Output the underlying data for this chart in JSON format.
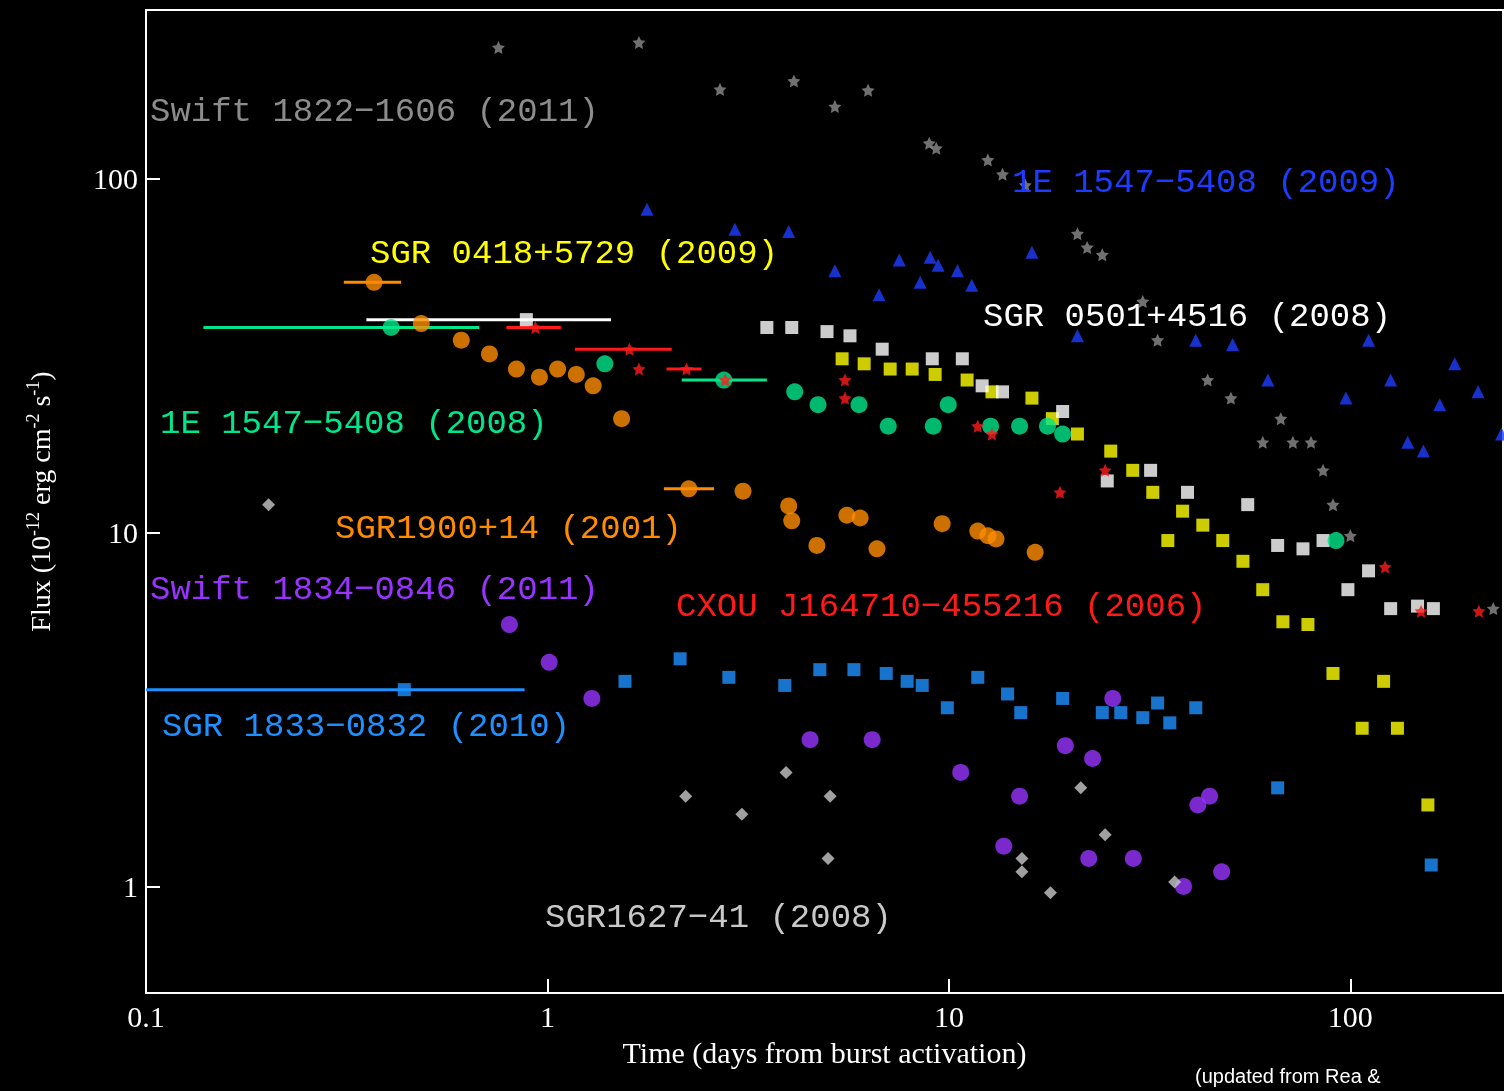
{
  "chart_data": {
    "type": "scatter",
    "xlabel": "Time (days from burst activation)",
    "ylabel": "Flux (10$^{-12}$ erg cm$^{-2}$ s$^{-1}$)",
    "log": "xy",
    "grid": false,
    "xlim": [
      0.1,
      240
    ],
    "xticks": [
      0.1,
      1,
      10,
      100
    ],
    "ylim": [
      0.5,
      300
    ],
    "yticks": [
      1,
      10,
      100
    ],
    "annotations": [
      "(updated from Rea &"
    ],
    "series": [
      {
        "name": "Swift 1822−1606 (2011)",
        "color": "#8c8c8c",
        "marker": "star",
        "x": [
          0.755,
          1.69,
          2.69,
          4.11,
          5.2,
          6.29,
          8.93,
          9.3,
          12.5,
          13.6,
          15.5,
          20.9,
          22.1,
          24.1,
          30.4,
          33.1,
          44.1,
          50.4,
          60.5,
          67.1,
          71.9,
          79.8,
          85.5,
          90.5,
          100,
          227
        ],
        "values": [
          235,
          243,
          179,
          189,
          160,
          178,
          126,
          122,
          113,
          103,
          96,
          70,
          64,
          61,
          45,
          35,
          27,
          24,
          18,
          21,
          18,
          18,
          15,
          12,
          9.8,
          6.1
        ]
      },
      {
        "name": "1E 1547−5408 (2009)",
        "color": "#1e3cff",
        "marker": "triangle",
        "x": [
          1.77,
          2.93,
          3.99,
          5.2,
          6.7,
          7.52,
          8.48,
          8.98,
          9.4,
          10.5,
          11.4,
          16.1,
          20.9,
          41.2,
          50.9,
          62.3,
          97.5,
          111,
          126,
          139,
          152,
          167,
          182,
          208,
          238
        ],
        "values": [
          82,
          72,
          71,
          55,
          47,
          59,
          51,
          60,
          57,
          55,
          50,
          62,
          36,
          35,
          34,
          27,
          24,
          35,
          27,
          18,
          17,
          23,
          30,
          25,
          19
        ]
      },
      {
        "name": "SGR 0418+5729 (2009)",
        "color": "#ffff00",
        "marker": "square",
        "x": [
          5.42,
          6.15,
          7.14,
          8.1,
          9.24,
          11.1,
          12.8,
          16.1,
          18.1,
          20.9,
          25.3,
          28.7,
          32.2,
          35.1,
          38.2,
          42.9,
          48.1,
          54,
          60.5,
          67.9,
          78.4,
          90.5,
          107,
          121,
          131,
          156
        ],
        "values": [
          31,
          30,
          29,
          29,
          28,
          27,
          25,
          24,
          21,
          19,
          17,
          15,
          13,
          9.5,
          11.5,
          10.5,
          9.5,
          8.3,
          6.9,
          5.6,
          5.5,
          4,
          2.8,
          3.8,
          2.8,
          1.7
        ]
      },
      {
        "name": "SGR 0501+4516 (2008)",
        "color": "#ffffff",
        "marker": "square",
        "x": [
          0.886,
          3.52,
          4.06,
          4.97,
          5.67,
          6.82,
          9.09,
          10.8,
          12.1,
          13.6,
          19.2,
          24.8,
          31.8,
          39.3,
          55.5,
          65.9,
          76.2,
          85.5,
          98.6,
          111,
          126,
          147,
          161
        ],
        "values": [
          40,
          38,
          38,
          37,
          36,
          33,
          31,
          31,
          26,
          25,
          22,
          14,
          15,
          13,
          12,
          9.2,
          9,
          9.5,
          6.9,
          7.8,
          6.1,
          6.2,
          6.1
        ],
        "xerrors": [
          [
            0.354,
            1.44
          ],
          null,
          null,
          null,
          null,
          null,
          null,
          null,
          null,
          null,
          null,
          null,
          null,
          null,
          null,
          null,
          null,
          null,
          null,
          null,
          null,
          null,
          null
        ]
      },
      {
        "name": "1E 1547−5408 (2008)",
        "color": "#00e68a",
        "marker": "circle",
        "x": [
          0.408,
          1.39,
          2.75,
          4.13,
          4.72,
          5.97,
          7.06,
          9.14,
          9.96,
          12.7,
          15,
          17.6,
          19.2,
          92.1
        ],
        "values": [
          38,
          30,
          27,
          25,
          23,
          23,
          20,
          20,
          23,
          20,
          20,
          20,
          19,
          9.5
        ],
        "xerrors": [
          [
            0.139,
            0.676
          ],
          null,
          [
            2.16,
            3.52
          ],
          null,
          null,
          null,
          null,
          null,
          null,
          null,
          null,
          null,
          null,
          null
        ]
      },
      {
        "name": "SGR1900+14 (2001)",
        "color": "#ff8c00",
        "marker": "circle",
        "x": [
          0.37,
          0.485,
          0.61,
          0.717,
          0.837,
          0.955,
          1.06,
          1.18,
          1.3,
          1.53,
          2.25,
          3.07,
          3.99,
          4.06,
          4.69,
          5.57,
          6.01,
          6.62,
          9.62,
          11.8,
          12.5,
          13.1,
          16.4
        ],
        "values": [
          51,
          39,
          35,
          32,
          29,
          27.5,
          29,
          28,
          26,
          21,
          13.3,
          13.1,
          11.9,
          10.8,
          9.2,
          11.2,
          11,
          9,
          10.6,
          10.1,
          9.8,
          9.6,
          8.8
        ],
        "xerrors": [
          [
            0.311,
            0.432
          ],
          null,
          null,
          null,
          null,
          null,
          null,
          null,
          null,
          null,
          [
            1.95,
            2.6
          ],
          null,
          null,
          null,
          null,
          null,
          null,
          null,
          null,
          null,
          null,
          null,
          null
        ]
      },
      {
        "name": "Swift 1834−0846 (2011)",
        "color": "#9933ff",
        "marker": "circle",
        "x": [
          0.804,
          1.01,
          1.29,
          4.51,
          6.44,
          10.7,
          13.7,
          15,
          19.5,
          22.3,
          22.8,
          25.6,
          28.8,
          38.4,
          41.7,
          44.6,
          47.8
        ],
        "values": [
          5.5,
          4.3,
          3.4,
          2.6,
          2.6,
          2.1,
          1.3,
          1.8,
          2.5,
          1.2,
          2.3,
          3.4,
          1.2,
          1,
          1.7,
          1.8,
          1.1
        ]
      },
      {
        "name": "CXOU J164710−455216 (2006)",
        "color": "#ff1a1a",
        "marker": "star",
        "x": [
          0.933,
          1.6,
          1.69,
          2.22,
          2.77,
          5.51,
          5.51,
          11.8,
          12.8,
          18.9,
          24.5,
          122,
          150,
          209
        ],
        "values": [
          38,
          33,
          29,
          29,
          27,
          27,
          24,
          20,
          19,
          13,
          15,
          8,
          6,
          6
        ],
        "xerrors": [
          [
            0.79,
            1.08
          ],
          [
            1.17,
            2.04
          ],
          null,
          [
            1.98,
            2.42
          ],
          null,
          null,
          null,
          null,
          null,
          null,
          null,
          null,
          null,
          null
        ]
      },
      {
        "name": "SGR 1833−0832 (2010)",
        "color": "#1e90ff",
        "marker": "square",
        "x": [
          0.44,
          1.56,
          2.14,
          2.83,
          3.9,
          4.77,
          5.8,
          6.98,
          7.87,
          8.58,
          9.91,
          11.8,
          14,
          15.1,
          19.2,
          24.1,
          26.8,
          30.4,
          33.1,
          35.5,
          41.2,
          65.9,
          159
        ],
        "values": [
          3.6,
          3.8,
          4.4,
          3.9,
          3.7,
          4.1,
          4.1,
          4,
          3.8,
          3.7,
          3.2,
          3.9,
          3.5,
          3.1,
          3.4,
          3.1,
          3.1,
          3,
          3.3,
          2.9,
          3.2,
          1.9,
          1.15
        ],
        "xerrors": [
          [
            0.1,
            0.877
          ],
          null,
          null,
          null,
          null,
          null,
          null,
          null,
          null,
          null,
          null,
          null,
          null,
          null,
          null,
          null,
          null,
          null,
          null,
          null,
          null,
          null,
          null
        ]
      },
      {
        "name": "SGR1627−41 (2008)",
        "color": "#c8c8c8",
        "marker": "diamond",
        "x": [
          0.202,
          2.21,
          3.05,
          3.93,
          5.06,
          5,
          15.2,
          15.2,
          17.9,
          21.3,
          24.5,
          36.5
        ],
        "values": [
          12,
          1.8,
          1.6,
          2.1,
          1.8,
          1.2,
          1.1,
          1.2,
          0.96,
          1.9,
          1.4,
          1.03
        ]
      }
    ]
  }
}
